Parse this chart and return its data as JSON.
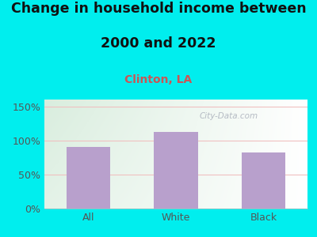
{
  "categories": [
    "All",
    "White",
    "Black"
  ],
  "values": [
    90,
    112,
    82
  ],
  "bar_color": "#b8a0cc",
  "title_line1": "Change in household income between",
  "title_line2": "2000 and 2022",
  "subtitle": "Clinton, LA",
  "subtitle_color": "#cc5555",
  "title_fontsize": 12.5,
  "subtitle_fontsize": 10,
  "ylim": [
    0,
    160
  ],
  "yticks": [
    0,
    50,
    100,
    150
  ],
  "ytick_labels": [
    "0%",
    "50%",
    "100%",
    "150%"
  ],
  "bg_color": "#00eeee",
  "plot_bg_top_left": "#d8eedd",
  "plot_bg_right": "#f8f8ff",
  "grid_color": "#f0c0c0",
  "bar_width": 0.5,
  "watermark": "City-Data.com",
  "watermark_color": "#aab0bb",
  "tick_color": "#555555",
  "tick_fontsize": 9
}
